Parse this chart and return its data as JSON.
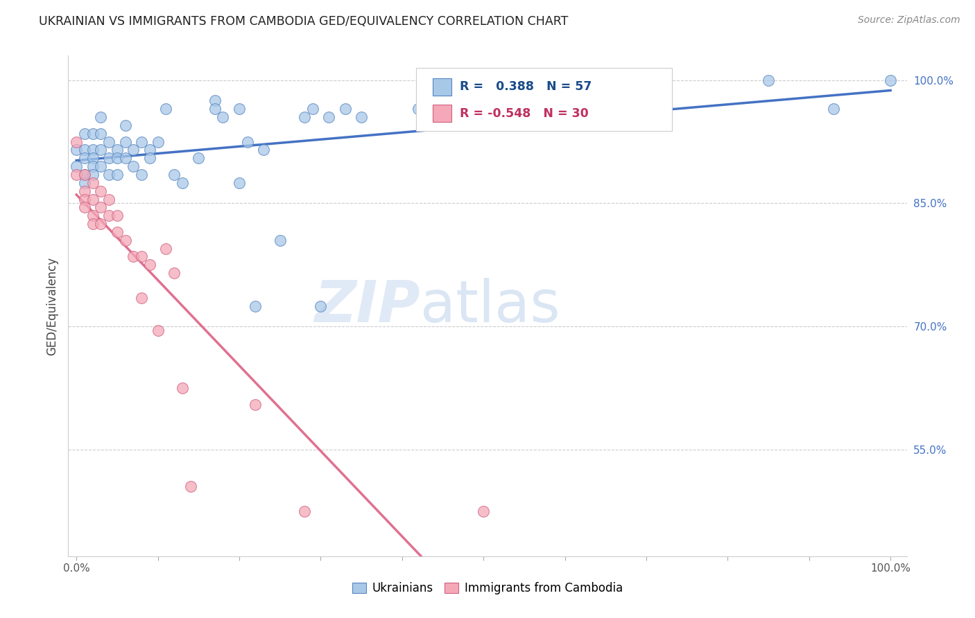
{
  "title": "UKRAINIAN VS IMMIGRANTS FROM CAMBODIA GED/EQUIVALENCY CORRELATION CHART",
  "source": "Source: ZipAtlas.com",
  "ylabel": "GED/Equivalency",
  "y_ticks_right": [
    0.55,
    0.7,
    0.85,
    1.0
  ],
  "y_ticks_right_labels": [
    "55.0%",
    "70.0%",
    "85.0%",
    "100.0%"
  ],
  "blue_R": "0.388",
  "blue_N": "57",
  "pink_R": "-0.548",
  "pink_N": "30",
  "blue_color": "#a8c8e8",
  "pink_color": "#f4a8b8",
  "blue_edge_color": "#5585c0",
  "pink_edge_color": "#d06080",
  "blue_line_color": "#4472c4",
  "pink_line_color": "#e07090",
  "watermark_zip": "ZIP",
  "watermark_atlas": "atlas",
  "ylim": [
    0.42,
    1.03
  ],
  "xlim": [
    -0.01,
    1.02
  ],
  "blue_points_x": [
    0.0,
    0.0,
    0.01,
    0.01,
    0.01,
    0.01,
    0.01,
    0.02,
    0.02,
    0.02,
    0.02,
    0.02,
    0.03,
    0.03,
    0.03,
    0.03,
    0.04,
    0.04,
    0.04,
    0.05,
    0.05,
    0.05,
    0.06,
    0.06,
    0.06,
    0.07,
    0.07,
    0.08,
    0.08,
    0.09,
    0.09,
    0.1,
    0.11,
    0.12,
    0.13,
    0.15,
    0.17,
    0.17,
    0.18,
    0.2,
    0.2,
    0.21,
    0.22,
    0.23,
    0.25,
    0.28,
    0.29,
    0.3,
    0.31,
    0.33,
    0.35,
    0.42,
    0.5,
    0.67,
    0.85,
    0.93,
    1.0
  ],
  "blue_points_y": [
    0.915,
    0.895,
    0.935,
    0.915,
    0.905,
    0.885,
    0.875,
    0.935,
    0.915,
    0.905,
    0.895,
    0.885,
    0.955,
    0.935,
    0.915,
    0.895,
    0.925,
    0.905,
    0.885,
    0.915,
    0.905,
    0.885,
    0.945,
    0.925,
    0.905,
    0.915,
    0.895,
    0.925,
    0.885,
    0.915,
    0.905,
    0.925,
    0.965,
    0.885,
    0.875,
    0.905,
    0.975,
    0.965,
    0.955,
    0.965,
    0.875,
    0.925,
    0.725,
    0.915,
    0.805,
    0.955,
    0.965,
    0.725,
    0.955,
    0.965,
    0.955,
    0.965,
    1.0,
    0.965,
    1.0,
    0.965,
    1.0
  ],
  "pink_points_x": [
    0.0,
    0.0,
    0.01,
    0.01,
    0.01,
    0.01,
    0.02,
    0.02,
    0.02,
    0.02,
    0.03,
    0.03,
    0.03,
    0.04,
    0.04,
    0.05,
    0.05,
    0.06,
    0.07,
    0.08,
    0.08,
    0.09,
    0.1,
    0.11,
    0.12,
    0.13,
    0.14,
    0.22,
    0.28,
    0.5
  ],
  "pink_points_y": [
    0.925,
    0.885,
    0.885,
    0.865,
    0.855,
    0.845,
    0.875,
    0.855,
    0.835,
    0.825,
    0.865,
    0.845,
    0.825,
    0.855,
    0.835,
    0.835,
    0.815,
    0.805,
    0.785,
    0.735,
    0.785,
    0.775,
    0.695,
    0.795,
    0.765,
    0.625,
    0.505,
    0.605,
    0.475,
    0.475
  ],
  "blue_line_ends": [
    0.0,
    1.0
  ],
  "pink_line_ends": [
    0.0,
    1.0
  ]
}
